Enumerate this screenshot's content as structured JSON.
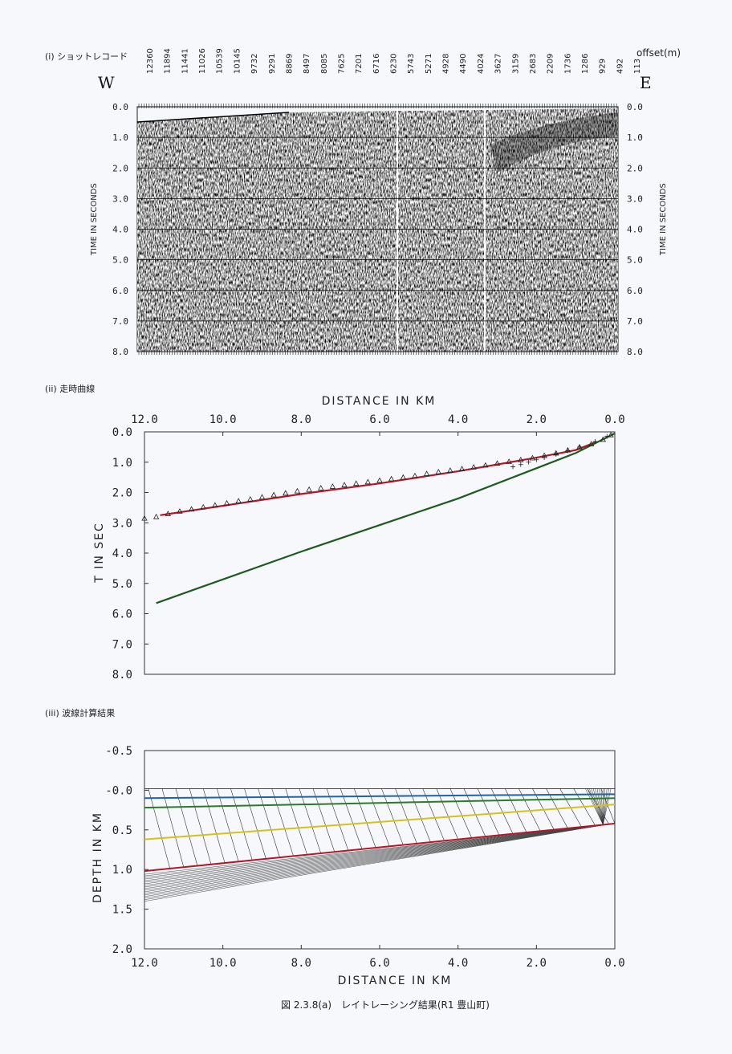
{
  "figure": {
    "caption": "図 2.3.8(a)　レイトレーシング結果(R1 豊山町)"
  },
  "panels": {
    "shot": {
      "label": "(i) ショットレコード",
      "offset_unit": "offset(m)",
      "west": "W",
      "east": "E",
      "ylabel": "TIME IN SECONDS",
      "offsets": [
        "12360",
        "11894",
        "11441",
        "11026",
        "10539",
        "10145",
        "9732",
        "9291",
        "8869",
        "8497",
        "8085",
        "7625",
        "7201",
        "6716",
        "6230",
        "5743",
        "5271",
        "4928",
        "4490",
        "4024",
        "3627",
        "3159",
        "2683",
        "2209",
        "1736",
        "1286",
        "929",
        "492",
        "113"
      ],
      "time_ticks": [
        "0.0",
        "1.0",
        "2.0",
        "3.0",
        "4.0",
        "5.0",
        "6.0",
        "7.0",
        "8.0"
      ]
    },
    "travel": {
      "label": "(ii) 走時曲線",
      "title": "DISTANCE IN KM",
      "ylabel": "T IN SEC"
    },
    "ray": {
      "label": "(iii) 波線計算結果",
      "xlabel": "DISTANCE IN KM",
      "ylabel": "DEPTH IN KM"
    }
  },
  "chart_data": [
    {
      "type": "heatmap",
      "title": "",
      "xlabel": "offset(m)",
      "ylabel": "TIME IN SECONDS",
      "x_categories": [
        "12360",
        "11894",
        "11441",
        "11026",
        "10539",
        "10145",
        "9732",
        "9291",
        "8869",
        "8497",
        "8085",
        "7625",
        "7201",
        "6716",
        "6230",
        "5743",
        "5271",
        "4928",
        "4490",
        "4024",
        "3627",
        "3159",
        "2683",
        "2209",
        "1736",
        "1286",
        "929",
        "492",
        "113"
      ],
      "ylim": [
        0,
        8
      ],
      "grid": true
    },
    {
      "type": "line",
      "title": "DISTANCE IN KM",
      "xlabel": "DISTANCE IN KM",
      "ylabel": "T IN SEC",
      "xlim": [
        12.0,
        0.0
      ],
      "ylim": [
        0.0,
        8.0
      ],
      "xticks": [
        "12.0",
        "10.0",
        "8.0",
        "6.0",
        "4.0",
        "2.0",
        "0.0"
      ],
      "yticks": [
        "0.0",
        "1.0",
        "2.0",
        "3.0",
        "4.0",
        "5.0",
        "6.0",
        "7.0",
        "8.0"
      ],
      "series": [
        {
          "color": "#b0182a",
          "x": [
            11.6,
            8.0,
            6.0,
            4.0,
            2.0,
            1.0,
            0.5
          ],
          "y": [
            2.75,
            2.05,
            1.7,
            1.3,
            0.85,
            0.6,
            0.35
          ]
        },
        {
          "color": "#1f5a1f",
          "x": [
            11.7,
            8.0,
            4.0,
            2.0,
            1.0,
            0.0
          ],
          "y": [
            5.65,
            3.95,
            2.2,
            1.2,
            0.7,
            0.05
          ]
        }
      ],
      "observed_triangles": {
        "x": [
          12.0,
          11.7,
          11.4,
          11.1,
          10.8,
          10.5,
          10.2,
          9.9,
          9.6,
          9.3,
          9.0,
          8.7,
          8.4,
          8.1,
          7.8,
          7.5,
          7.2,
          6.9,
          6.6,
          6.3,
          6.0,
          5.7,
          5.4,
          5.1,
          4.8,
          4.5,
          4.2,
          3.9,
          3.6,
          3.3,
          3.0,
          2.7,
          2.4,
          2.1,
          1.8,
          1.5,
          1.2,
          0.9,
          0.6,
          0.3,
          0.1
        ],
        "y": [
          2.85,
          2.8,
          2.7,
          2.62,
          2.55,
          2.48,
          2.42,
          2.35,
          2.28,
          2.22,
          2.15,
          2.08,
          2.02,
          1.95,
          1.9,
          1.85,
          1.8,
          1.75,
          1.7,
          1.65,
          1.6,
          1.55,
          1.5,
          1.45,
          1.38,
          1.32,
          1.27,
          1.22,
          1.16,
          1.1,
          1.04,
          0.98,
          0.92,
          0.86,
          0.78,
          0.7,
          0.6,
          0.5,
          0.4,
          0.25,
          0.1
        ]
      },
      "observed_crosses": {
        "x": [
          2.6,
          2.4,
          2.2,
          2.0,
          1.8,
          1.5,
          1.2,
          0.9,
          0.5,
          0.2
        ],
        "y": [
          1.15,
          1.08,
          1.0,
          0.92,
          0.85,
          0.74,
          0.62,
          0.5,
          0.32,
          0.15
        ]
      },
      "grid": false
    },
    {
      "type": "line",
      "title": "",
      "xlabel": "DISTANCE IN KM",
      "ylabel": "DEPTH IN KM",
      "xlim": [
        12.0,
        0.0
      ],
      "ylim": [
        -0.5,
        2.0
      ],
      "xticks": [
        "12.0",
        "10.0",
        "8.0",
        "6.0",
        "4.0",
        "2.0",
        "0.0"
      ],
      "yticks": [
        "-0.5",
        "-0.0",
        "0.5",
        "1.0",
        "1.5",
        "2.0"
      ],
      "series": [
        {
          "color": "#1f63a8",
          "x": [
            12.0,
            0.0
          ],
          "y": [
            0.1,
            0.05
          ]
        },
        {
          "color": "#2a7a2a",
          "x": [
            12.0,
            0.0
          ],
          "y": [
            0.22,
            0.1
          ]
        },
        {
          "color": "#d4c21a",
          "x": [
            12.0,
            0.0
          ],
          "y": [
            0.62,
            0.18
          ]
        },
        {
          "color": "#b0182a",
          "x": [
            12.0,
            0.0
          ],
          "y": [
            1.02,
            0.42
          ]
        }
      ],
      "grid": false
    }
  ]
}
